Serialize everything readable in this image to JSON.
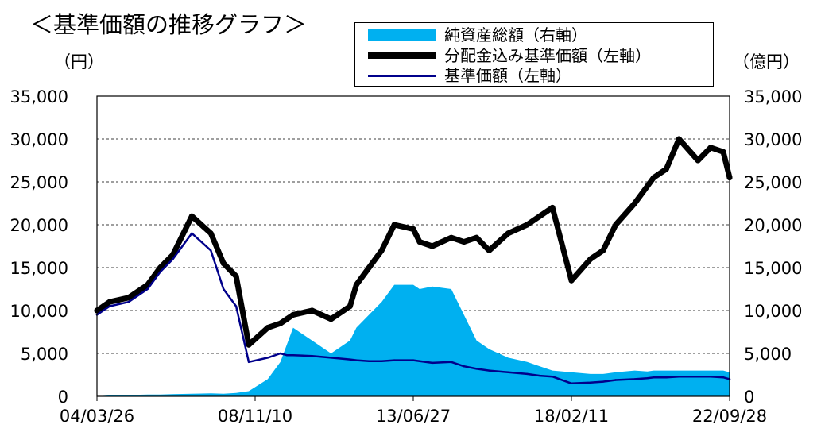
{
  "title": "＜基準価額の推移グラフ＞",
  "left_unit": "（円）",
  "right_unit": "（億円）",
  "chart_data": {
    "type": "line",
    "x_tick_labels": [
      "04/03/26",
      "08/11/10",
      "13/06/27",
      "18/02/11",
      "22/09/28"
    ],
    "y_left_ticks": [
      "35,000",
      "30,000",
      "25,000",
      "20,000",
      "15,000",
      "10,000",
      "5,000",
      "0"
    ],
    "y_right_ticks": [
      "35,000",
      "30,000",
      "25,000",
      "20,000",
      "15,000",
      "10,000",
      "5,000",
      "0"
    ],
    "ylim_left": [
      0,
      35000
    ],
    "ylim_right": [
      0,
      35000
    ],
    "grid": "horizontal dashed",
    "legend_placement": "top-center",
    "x_positions": [
      0,
      0.02,
      0.05,
      0.08,
      0.1,
      0.12,
      0.15,
      0.18,
      0.2,
      0.22,
      0.24,
      0.27,
      0.29,
      0.3,
      0.31,
      0.34,
      0.37,
      0.4,
      0.41,
      0.43,
      0.45,
      0.47,
      0.5,
      0.51,
      0.53,
      0.56,
      0.58,
      0.6,
      0.62,
      0.65,
      0.68,
      0.7,
      0.72,
      0.75,
      0.78,
      0.8,
      0.82,
      0.85,
      0.87,
      0.88,
      0.9,
      0.92,
      0.95,
      0.97,
      0.99,
      1.0
    ],
    "series": [
      {
        "name": "純資産総額（右軸）",
        "axis": "right",
        "style": "area",
        "color": "#00b0f0",
        "values": [
          0,
          100,
          150,
          200,
          200,
          250,
          300,
          350,
          300,
          400,
          600,
          2000,
          4000,
          6000,
          8000,
          6500,
          5000,
          6500,
          8000,
          9500,
          11000,
          13000,
          13000,
          12500,
          12800,
          12500,
          9500,
          6500,
          5500,
          4500,
          4000,
          3500,
          3000,
          2800,
          2600,
          2600,
          2800,
          3000,
          2900,
          3000,
          3000,
          3000,
          3000,
          3000,
          3000,
          2800
        ]
      },
      {
        "name": "分配金込み基準価額（左軸）",
        "axis": "left",
        "style": "thick-line",
        "color": "#000000",
        "values": [
          10000,
          11000,
          11500,
          13000,
          15000,
          16500,
          21000,
          19000,
          15500,
          14000,
          6000,
          8000,
          8500,
          9000,
          9500,
          10000,
          9000,
          10500,
          13000,
          15000,
          17000,
          20000,
          19500,
          18000,
          17500,
          18500,
          18000,
          18500,
          17000,
          19000,
          20000,
          21000,
          22000,
          13500,
          16000,
          17000,
          20000,
          22500,
          24500,
          25500,
          26500,
          30000,
          27500,
          29000,
          28500,
          25500
        ]
      },
      {
        "name": "基準価額（左軸）",
        "axis": "left",
        "style": "line",
        "color": "#00008b",
        "values": [
          9500,
          10500,
          11000,
          12500,
          14500,
          16000,
          19000,
          17000,
          12500,
          10500,
          4000,
          4500,
          5000,
          4800,
          4800,
          4700,
          4500,
          4300,
          4200,
          4100,
          4100,
          4200,
          4200,
          4100,
          3900,
          4000,
          3500,
          3200,
          3000,
          2800,
          2600,
          2400,
          2300,
          1500,
          1600,
          1700,
          1900,
          2000,
          2100,
          2200,
          2200,
          2300,
          2300,
          2300,
          2200,
          2000
        ]
      }
    ]
  }
}
